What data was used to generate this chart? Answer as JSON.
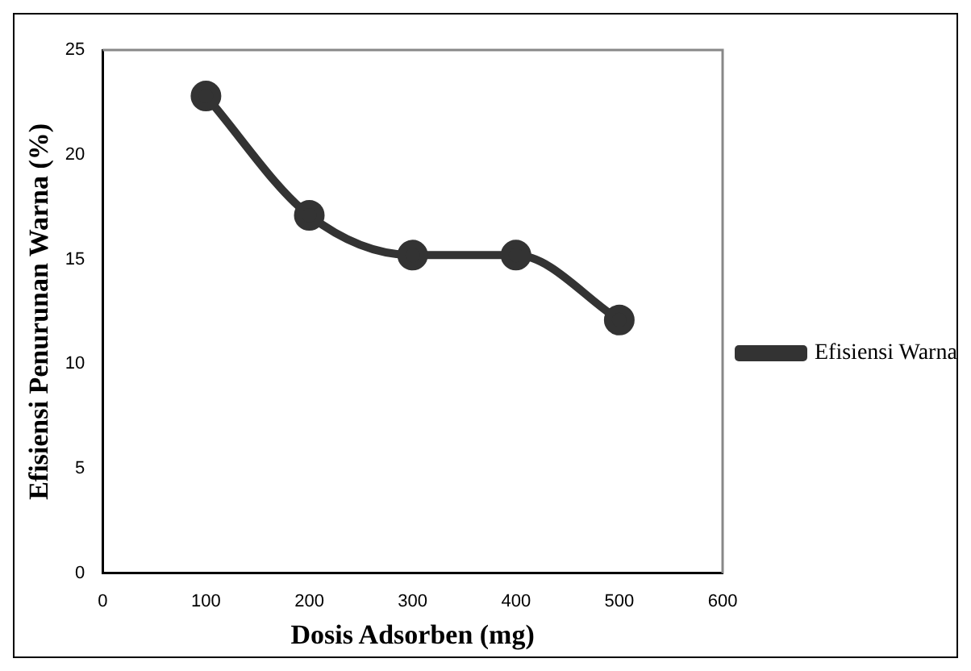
{
  "chart_data": {
    "type": "line",
    "xlabel": "Dosis Adsorben (mg)",
    "ylabel": "Efisiensi Penurunan Warna (%)",
    "x": [
      100,
      200,
      300,
      400,
      500
    ],
    "series": [
      {
        "name": "Efisiensi Warna",
        "color": "#333333",
        "values": [
          22.8,
          17.1,
          15.2,
          15.2,
          12.1
        ]
      }
    ],
    "xlim": [
      0,
      600
    ],
    "xticks": [
      0,
      100,
      200,
      300,
      400,
      500,
      600
    ],
    "ylim": [
      0,
      25
    ],
    "yticks": [
      0,
      5,
      10,
      15,
      20,
      25
    ],
    "grid": false,
    "legend": "right",
    "marker": "circle",
    "line_style": "solid"
  }
}
